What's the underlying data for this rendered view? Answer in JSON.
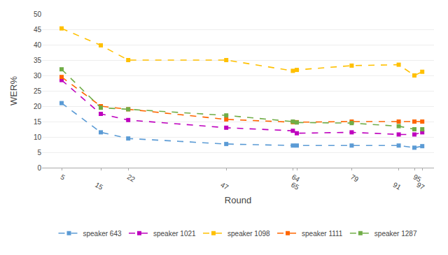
{
  "chart_data": {
    "type": "line",
    "x": [
      5,
      15,
      22,
      47,
      64,
      65,
      79,
      91,
      95,
      97
    ],
    "series": [
      {
        "name": "speaker 643",
        "color": "#5B9BD5",
        "values": [
          21,
          11.5,
          9.5,
          7.7,
          7.2,
          7.2,
          7.2,
          7.2,
          6.5,
          7.0
        ]
      },
      {
        "name": "speaker 1021",
        "color": "#BE00BE",
        "values": [
          28.5,
          17.5,
          15.5,
          13.0,
          12.0,
          11.2,
          11.5,
          10.8,
          10.8,
          11.5
        ]
      },
      {
        "name": "speaker 1098",
        "color": "#FFC000",
        "values": [
          45.3,
          39.8,
          35.0,
          35.0,
          31.5,
          31.8,
          33.2,
          33.5,
          30.0,
          31.2
        ]
      },
      {
        "name": "speaker 1111",
        "color": "#FF6600",
        "values": [
          29.5,
          20.0,
          19.0,
          15.7,
          14.8,
          14.8,
          15.0,
          15.0,
          15.0,
          15.0
        ]
      },
      {
        "name": "speaker 1287",
        "color": "#70AD47",
        "values": [
          32.0,
          19.5,
          19.0,
          17.0,
          15.0,
          14.7,
          14.5,
          13.5,
          12.5,
          12.5
        ]
      }
    ],
    "xlabel": "Round",
    "ylabel": "WER%",
    "xlim": [
      0,
      100
    ],
    "xticks": [
      5,
      15,
      22,
      47,
      64,
      65,
      79,
      91,
      95,
      97
    ],
    "ylim": [
      0,
      50
    ],
    "yticks": [
      0,
      5,
      10,
      15,
      20,
      25,
      30,
      35,
      40,
      45,
      50
    ],
    "grid": true,
    "legend": "bottom",
    "marker": "square",
    "line_style": "dashed"
  }
}
